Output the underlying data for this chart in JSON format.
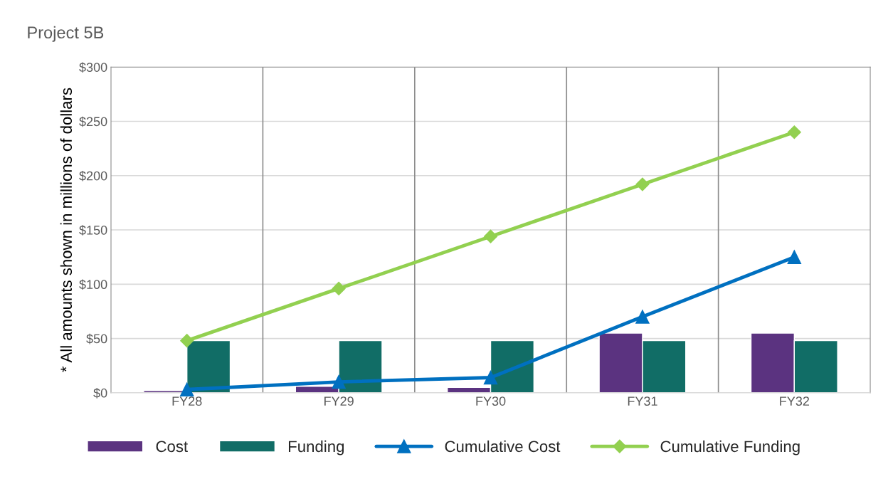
{
  "chart_data": {
    "type": "bar",
    "title": "Project 5B",
    "ylabel": "* All amounts shown in millions of dollars",
    "categories": [
      "FY28",
      "FY29",
      "FY30",
      "FY31",
      "FY32"
    ],
    "series": [
      {
        "name": "Cost",
        "color": "#5b3380",
        "values": [
          2,
          6,
          5,
          55,
          55
        ]
      },
      {
        "name": "Funding",
        "color": "#116d66",
        "values": [
          48,
          48,
          48,
          48,
          48
        ]
      },
      {
        "name": "Cumulative Cost",
        "type": "line",
        "color": "#0070c0",
        "marker": "triangle",
        "values": [
          3,
          10,
          14,
          70,
          125
        ]
      },
      {
        "name": "Cumulative Funding",
        "type": "line",
        "color": "#92d050",
        "marker": "diamond",
        "values": [
          48,
          96,
          144,
          192,
          240
        ]
      }
    ],
    "ylim": [
      0,
      300
    ],
    "yticks": [
      {
        "value": 0,
        "label": "$0"
      },
      {
        "value": 50,
        "label": "$50"
      },
      {
        "value": 100,
        "label": "$100"
      },
      {
        "value": 150,
        "label": "$150"
      },
      {
        "value": 200,
        "label": "$200"
      },
      {
        "value": 250,
        "label": "$250"
      },
      {
        "value": 300,
        "label": "$300"
      }
    ],
    "grid": true,
    "legend": "bottom"
  }
}
